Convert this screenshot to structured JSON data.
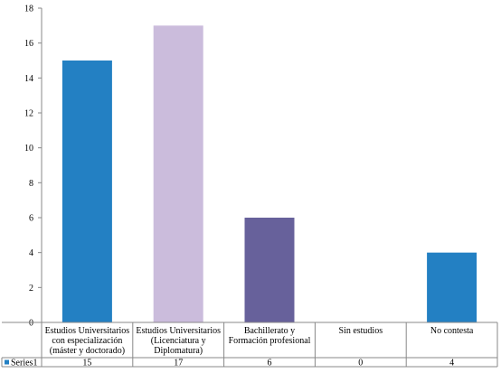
{
  "chart_data": {
    "type": "bar",
    "title": "",
    "xlabel": "",
    "ylabel": "",
    "ylim": [
      0,
      18
    ],
    "yticks": [
      0,
      2,
      4,
      6,
      8,
      10,
      12,
      14,
      16,
      18
    ],
    "grid": false,
    "legend": "data-table-left",
    "categories": [
      [
        "Estudios Universitarios",
        "con especialización",
        "(máster y doctorado)"
      ],
      [
        "Estudios Universitarios",
        "(Licenciatura y",
        "Diplomatura)"
      ],
      [
        "Bachillerato y",
        "Formación profesional"
      ],
      [
        "Sin estudios"
      ],
      [
        "No contesta"
      ]
    ],
    "series": [
      {
        "name": "Series1",
        "values": [
          15,
          17,
          6,
          0,
          4
        ],
        "value_labels": [
          "15",
          "17",
          "6",
          "0",
          "4"
        ],
        "colors": [
          "#2380c3",
          "#cbbcdc",
          "#67619b",
          "#2380c3",
          "#2380c3"
        ],
        "legend_color": "#2380c3"
      }
    ]
  }
}
